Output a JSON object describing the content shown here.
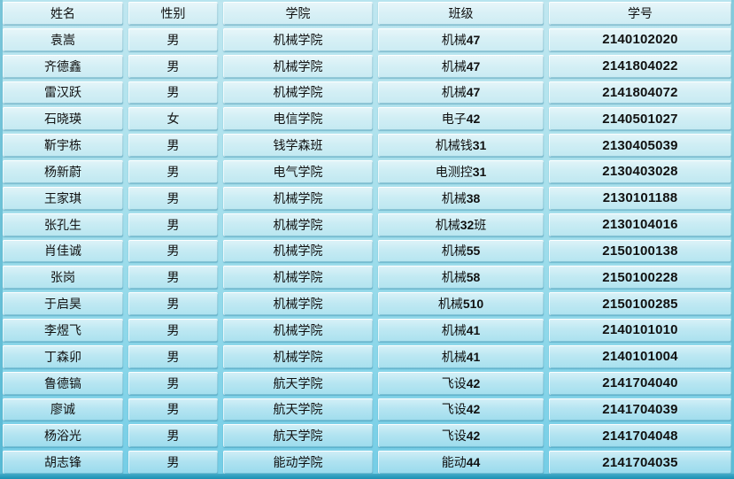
{
  "table": {
    "columns": [
      {
        "key": "name",
        "label": "姓名"
      },
      {
        "key": "gender",
        "label": "性别"
      },
      {
        "key": "college",
        "label": "学院"
      },
      {
        "key": "class",
        "label": "班级"
      },
      {
        "key": "student_id",
        "label": "学号"
      }
    ],
    "rows": [
      {
        "name": "袁嵩",
        "gender": "男",
        "college": "机械学院",
        "class": "机械47",
        "student_id": "2140102020"
      },
      {
        "name": "齐德鑫",
        "gender": "男",
        "college": "机械学院",
        "class": "机械47",
        "student_id": "2141804022"
      },
      {
        "name": "雷汉跃",
        "gender": "男",
        "college": "机械学院",
        "class": "机械47",
        "student_id": "2141804072"
      },
      {
        "name": "石晓瑛",
        "gender": "女",
        "college": "电信学院",
        "class": "电子42",
        "student_id": "2140501027"
      },
      {
        "name": "靳宇栋",
        "gender": "男",
        "college": "钱学森班",
        "class": "机械钱31",
        "student_id": "2130405039"
      },
      {
        "name": "杨新蔚",
        "gender": "男",
        "college": "电气学院",
        "class": "电测控31",
        "student_id": "2130403028"
      },
      {
        "name": "王家琪",
        "gender": "男",
        "college": "机械学院",
        "class": "机械38",
        "student_id": "2130101188"
      },
      {
        "name": "张孔生",
        "gender": "男",
        "college": "机械学院",
        "class": "机械32班",
        "student_id": "2130104016"
      },
      {
        "name": "肖佳诚",
        "gender": "男",
        "college": "机械学院",
        "class": "机械55",
        "student_id": "2150100138"
      },
      {
        "name": "张岗",
        "gender": "男",
        "college": "机械学院",
        "class": "机械58",
        "student_id": "2150100228"
      },
      {
        "name": "于启昊",
        "gender": "男",
        "college": "机械学院",
        "class": "机械510",
        "student_id": "2150100285"
      },
      {
        "name": "李煜飞",
        "gender": "男",
        "college": "机械学院",
        "class": "机械41",
        "student_id": "2140101010"
      },
      {
        "name": "丁森卯",
        "gender": "男",
        "college": "机械学院",
        "class": "机械41",
        "student_id": "2140101004"
      },
      {
        "name": "鲁德镐",
        "gender": "男",
        "college": "航天学院",
        "class": "飞设42",
        "student_id": "2141704040"
      },
      {
        "name": "廖诚",
        "gender": "男",
        "college": "航天学院",
        "class": "飞设42",
        "student_id": "2141704039"
      },
      {
        "name": "杨浴光",
        "gender": "男",
        "college": "航天学院",
        "class": "飞设42",
        "student_id": "2141704048"
      },
      {
        "name": "胡志锋",
        "gender": "男",
        "college": "能动学院",
        "class": "能动44",
        "student_id": "2141704035"
      }
    ]
  },
  "colors": {
    "background_top": "#c0e7f0",
    "background_bottom": "#74cde6",
    "cell_highlight": "#ffffff",
    "cell_shadow_edge": "#1a7c9c",
    "bottom_edge": "#2a9cbc",
    "text": "#111111"
  }
}
